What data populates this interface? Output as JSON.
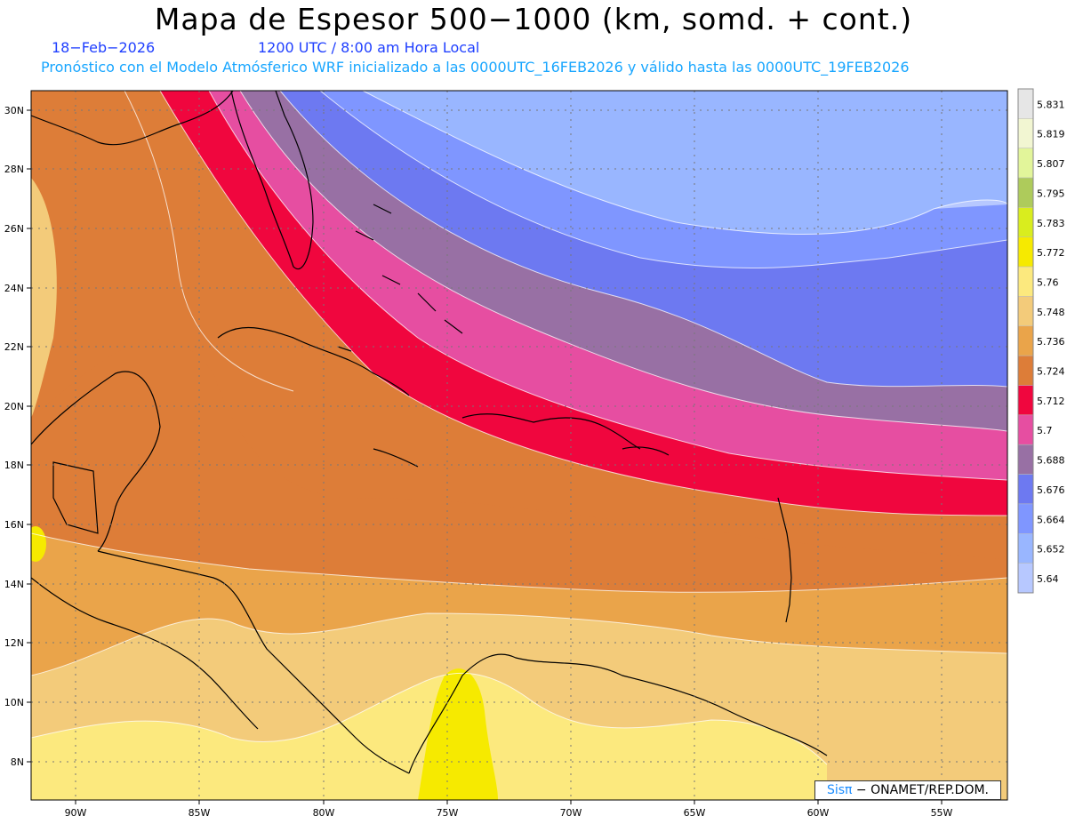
{
  "header": {
    "title": "Mapa de Espesor 500−1000 (km, somd. + cont.)",
    "date": "18−Feb−2026",
    "time": "1200 UTC / 8:00 am Hora Local",
    "forecast": "Pronóstico con el Modelo Atmósferico WRF inicializado a las 0000UTC_16FEB2026 y válido hasta las  0000UTC_19FEB2026"
  },
  "map": {
    "lat_labels": [
      "30N",
      "28N",
      "26N",
      "24N",
      "22N",
      "20N",
      "18N",
      "16N",
      "14N",
      "12N",
      "10N",
      "8N"
    ],
    "lon_labels": [
      "90W",
      "85W",
      "80W",
      "75W",
      "70W",
      "65W",
      "60W",
      "55W"
    ],
    "grid": true
  },
  "colorbar": {
    "levels": [
      "5.831",
      "5.819",
      "5.807",
      "5.795",
      "5.783",
      "5.772",
      "5.76",
      "5.748",
      "5.736",
      "5.724",
      "5.712",
      "5.7",
      "5.688",
      "5.676",
      "5.664",
      "5.652",
      "5.64"
    ],
    "colors": [
      "#e6e6e6",
      "#f2f6d2",
      "#e2f59a",
      "#aecb5b",
      "#d9ed1e",
      "#f6ea00",
      "#fce97e",
      "#f3cb7a",
      "#eaa44a",
      "#dd7d38",
      "#f0063e",
      "#e64ea1",
      "#9870a4",
      "#6d79f1",
      "#7f96ff",
      "#99b6ff",
      "#b7c8ff"
    ]
  },
  "credit": {
    "brand": "Sisπ",
    "text": " − ONAMET/REP.DOM."
  }
}
